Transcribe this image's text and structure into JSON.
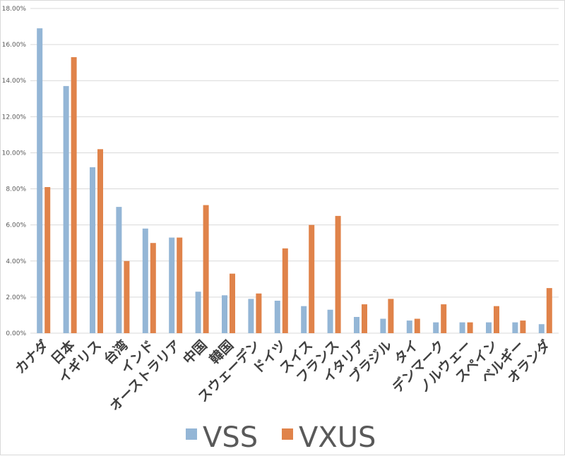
{
  "chart_data": {
    "type": "bar",
    "categories": [
      "カナダ",
      "日本",
      "イギリス",
      "台湾",
      "インド",
      "オーストラリア",
      "中国",
      "韓国",
      "スウェーデン",
      "ドイツ",
      "スイス",
      "フランス",
      "イタリア",
      "ブラジル",
      "タイ",
      "デンマーク",
      "ノルウェー",
      "スペイン",
      "ベルギー",
      "オランダ"
    ],
    "series": [
      {
        "name": "VSS",
        "color": "#94b6d6",
        "values": [
          16.9,
          13.7,
          9.2,
          7.0,
          5.8,
          5.3,
          2.3,
          2.1,
          1.9,
          1.8,
          1.5,
          1.3,
          0.9,
          0.8,
          0.7,
          0.6,
          0.6,
          0.6,
          0.6,
          0.5
        ]
      },
      {
        "name": "VXUS",
        "color": "#e0834a",
        "values": [
          8.1,
          15.3,
          10.2,
          4.0,
          5.0,
          5.3,
          7.1,
          3.3,
          2.2,
          4.7,
          6.0,
          6.5,
          1.6,
          1.9,
          0.8,
          1.6,
          0.6,
          1.5,
          0.7,
          2.5
        ]
      }
    ],
    "yticks": [
      "0.00%",
      "2.00%",
      "4.00%",
      "6.00%",
      "8.00%",
      "10.00%",
      "12.00%",
      "14.00%",
      "16.00%",
      "18.00%"
    ],
    "ylim": [
      0,
      18
    ],
    "grid": true,
    "legend": "bottom",
    "title": "",
    "xlabel": "",
    "ylabel": ""
  }
}
